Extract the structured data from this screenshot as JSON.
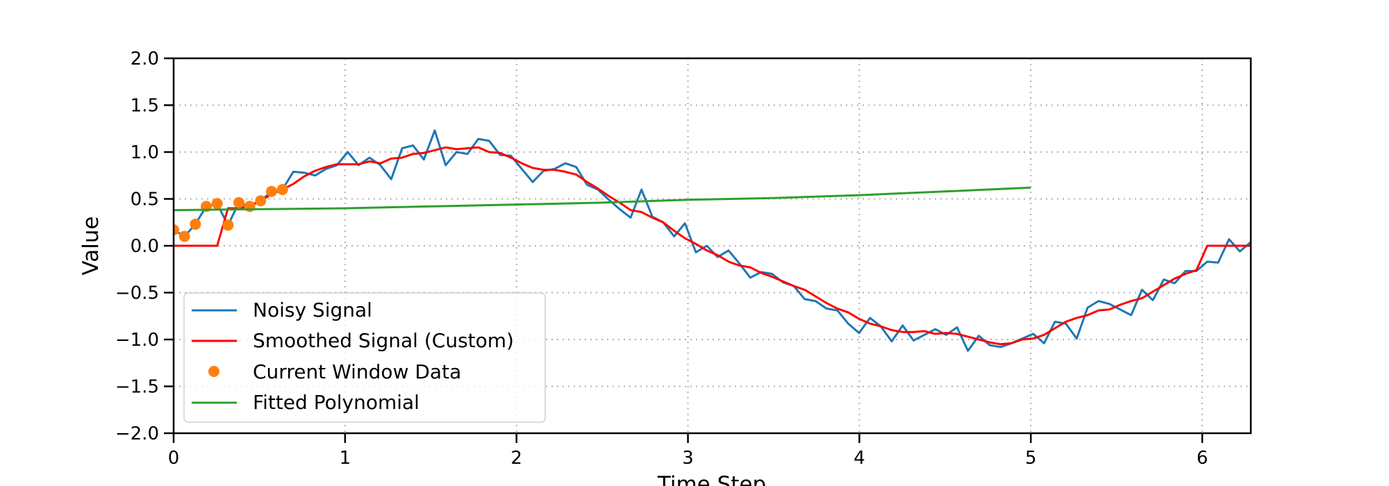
{
  "chart_data": {
    "type": "line",
    "title": "",
    "xlabel": "Time Step",
    "ylabel": "Value",
    "xlim": [
      0,
      6.2832
    ],
    "ylim": [
      -2.0,
      2.0
    ],
    "xticks": [
      "0",
      "1",
      "2",
      "3",
      "4",
      "5",
      "6"
    ],
    "yticks": [
      "2.0",
      "1.5",
      "1.0",
      "0.5",
      "0.0",
      "−0.5",
      "−1.0",
      "−1.5",
      "−2.0"
    ],
    "grid": true,
    "legend_placement": "lower-left",
    "x_start": 0,
    "x_end": 6.2832,
    "series": [
      {
        "name": "Noisy Signal",
        "kind": "line",
        "color": "#1f77b4",
        "values": [
          0.17,
          0.1,
          0.23,
          0.42,
          0.45,
          0.22,
          0.46,
          0.42,
          0.48,
          0.58,
          0.6,
          0.79,
          0.78,
          0.75,
          0.82,
          0.86,
          1.0,
          0.86,
          0.94,
          0.86,
          0.71,
          1.04,
          1.07,
          0.92,
          1.23,
          0.86,
          1.0,
          0.98,
          1.14,
          1.12,
          0.97,
          0.96,
          0.82,
          0.68,
          0.8,
          0.82,
          0.88,
          0.84,
          0.65,
          0.6,
          0.49,
          0.39,
          0.3,
          0.6,
          0.31,
          0.25,
          0.1,
          0.24,
          -0.07,
          0.0,
          -0.12,
          -0.05,
          -0.19,
          -0.34,
          -0.28,
          -0.3,
          -0.39,
          -0.43,
          -0.57,
          -0.59,
          -0.67,
          -0.69,
          -0.83,
          -0.93,
          -0.77,
          -0.86,
          -1.02,
          -0.85,
          -1.01,
          -0.95,
          -0.89,
          -0.95,
          -0.87,
          -1.12,
          -0.96,
          -1.06,
          -1.08,
          -1.04,
          -0.99,
          -0.94,
          -1.04,
          -0.81,
          -0.83,
          -0.99,
          -0.66,
          -0.59,
          -0.62,
          -0.68,
          -0.74,
          -0.47,
          -0.58,
          -0.36,
          -0.4,
          -0.27,
          -0.27,
          -0.17,
          -0.18,
          0.07,
          -0.06,
          0.04
        ]
      },
      {
        "name": "Smoothed Signal (Custom)",
        "kind": "line",
        "color": "#ff0000",
        "values": [
          0,
          0,
          0,
          0,
          0,
          0.4,
          0.4,
          0.43,
          0.48,
          0.55,
          0.6,
          0.66,
          0.74,
          0.8,
          0.84,
          0.87,
          0.87,
          0.87,
          0.9,
          0.88,
          0.93,
          0.94,
          0.98,
          0.99,
          1.02,
          1.05,
          1.03,
          1.04,
          1.05,
          1.0,
          0.99,
          0.94,
          0.88,
          0.83,
          0.81,
          0.81,
          0.79,
          0.76,
          0.68,
          0.61,
          0.53,
          0.46,
          0.38,
          0.36,
          0.3,
          0.25,
          0.16,
          0.08,
          0.02,
          -0.05,
          -0.1,
          -0.17,
          -0.21,
          -0.23,
          -0.29,
          -0.33,
          -0.38,
          -0.43,
          -0.47,
          -0.54,
          -0.61,
          -0.67,
          -0.71,
          -0.78,
          -0.83,
          -0.86,
          -0.9,
          -0.92,
          -0.92,
          -0.91,
          -0.94,
          -0.93,
          -0.94,
          -0.97,
          -1.0,
          -1.03,
          -1.05,
          -1.04,
          -1.0,
          -0.99,
          -0.95,
          -0.88,
          -0.81,
          -0.77,
          -0.74,
          -0.69,
          -0.68,
          -0.63,
          -0.59,
          -0.56,
          -0.49,
          -0.42,
          -0.35,
          -0.3,
          -0.26,
          0,
          0,
          0,
          0,
          0
        ]
      },
      {
        "name": "Current Window Data",
        "kind": "scatter",
        "color": "#ff7f0e",
        "x_index_range": [
          0,
          10
        ],
        "values": [
          0.17,
          0.1,
          0.23,
          0.42,
          0.45,
          0.22,
          0.46,
          0.42,
          0.48,
          0.58,
          0.6
        ]
      },
      {
        "name": "Fitted Polynomial",
        "kind": "line",
        "color": "#2ca02c",
        "x": [
          0,
          0.5,
          1,
          1.5,
          2,
          2.5,
          3,
          3.5,
          4,
          4.5,
          5
        ],
        "values": [
          0.38,
          0.39,
          0.4,
          0.42,
          0.44,
          0.46,
          0.49,
          0.51,
          0.54,
          0.58,
          0.62
        ]
      }
    ]
  }
}
